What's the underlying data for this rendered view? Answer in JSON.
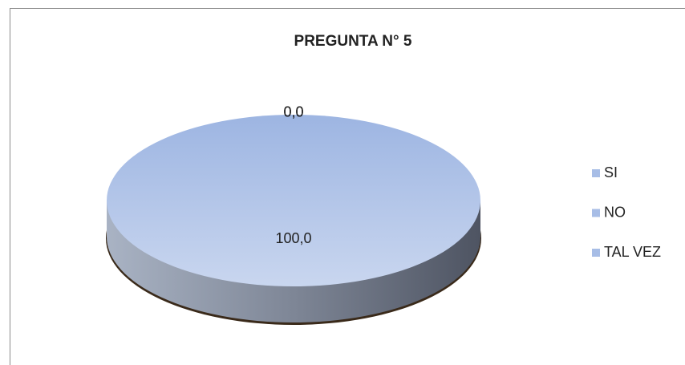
{
  "chart_data": {
    "type": "pie",
    "title": "PREGUNTA N°  5",
    "categories": [
      "SI",
      "NO",
      "TAL VEZ"
    ],
    "values": [
      100,
      0,
      0
    ],
    "value_labels": [
      "100,0",
      "0,0",
      "0,0"
    ],
    "colors": [
      "#a7bde6",
      "#a7bde6",
      "#a7bde6"
    ],
    "legend": "right"
  }
}
